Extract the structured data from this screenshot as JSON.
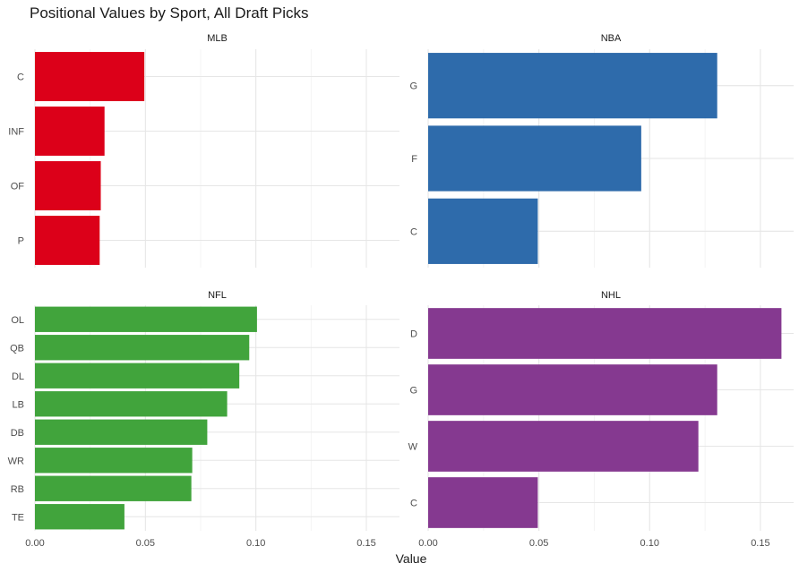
{
  "chart_data": {
    "type": "bar",
    "orientation": "horizontal",
    "title": "Positional Values by Sport, All Draft Picks",
    "xlabel": "Value",
    "ylabel": "",
    "xlim": [
      0,
      0.165
    ],
    "x_ticks": [
      "0.00",
      "0.05",
      "0.10",
      "0.15"
    ],
    "grid": true,
    "facets": [
      {
        "name": "MLB",
        "color": "#DC0019",
        "categories": [
          "C",
          "INF",
          "OF",
          "P"
        ],
        "values": [
          0.0495,
          0.0315,
          0.0298,
          0.0293
        ]
      },
      {
        "name": "NBA",
        "color": "#2E6BAB",
        "categories": [
          "G",
          "F",
          "C"
        ],
        "values": [
          0.1305,
          0.0962,
          0.0495
        ]
      },
      {
        "name": "NFL",
        "color": "#41A43C",
        "categories": [
          "OL",
          "QB",
          "DL",
          "LB",
          "DB",
          "WR",
          "RB",
          "TE"
        ],
        "values": [
          0.1005,
          0.097,
          0.0925,
          0.087,
          0.078,
          0.0712,
          0.0708,
          0.0405
        ]
      },
      {
        "name": "NHL",
        "color": "#853990",
        "categories": [
          "D",
          "G",
          "W",
          "C"
        ],
        "values": [
          0.1595,
          0.1305,
          0.122,
          0.0495
        ]
      }
    ]
  }
}
